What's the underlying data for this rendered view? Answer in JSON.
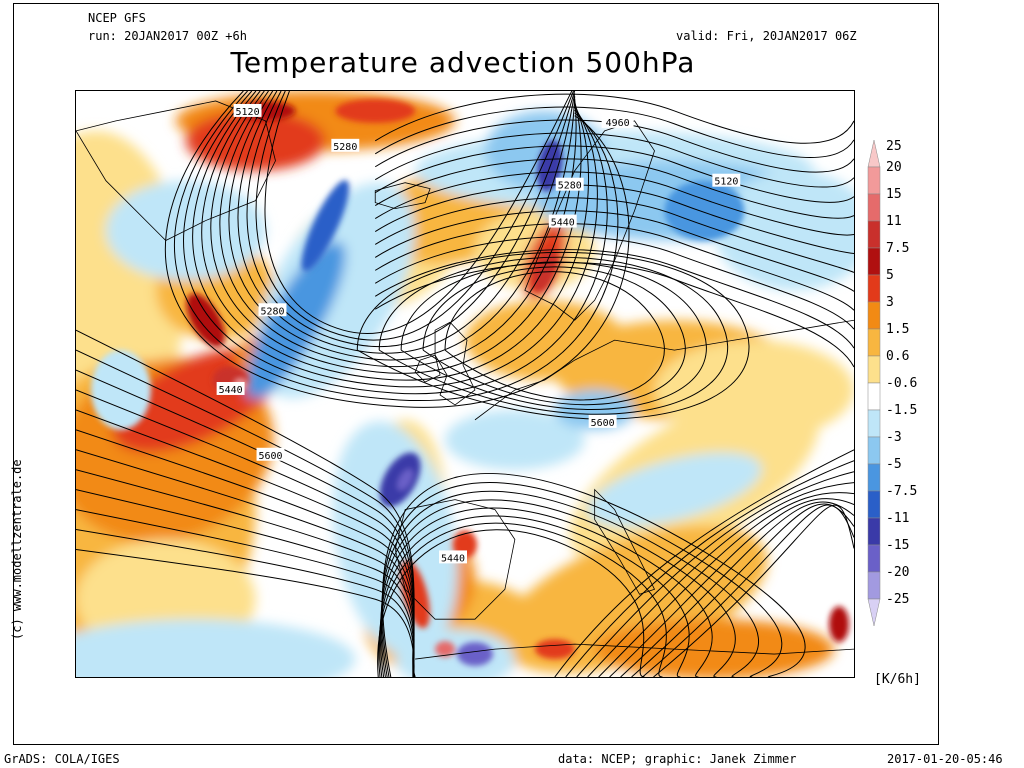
{
  "header": {
    "model": "NCEP GFS",
    "run": "run: 20JAN2017 00Z +6h",
    "valid": "valid: Fri, 20JAN2017 06Z",
    "title": "Temperature advection 500hPa"
  },
  "footer": {
    "grads": "GrADS: COLA/IGES",
    "data_credit": "data: NCEP; graphic: Janek Zimmer",
    "timestamp": "2017-01-20-05:46"
  },
  "side_credit": "(c) www.modellzentrale.de",
  "legend": {
    "unit": "[K/6h]",
    "levels": [
      {
        "label": "25",
        "color": "#f8c8c8"
      },
      {
        "label": "20",
        "color": "#f29a9a"
      },
      {
        "label": "15",
        "color": "#e56b6b"
      },
      {
        "label": "11",
        "color": "#c9302c"
      },
      {
        "label": "7.5",
        "color": "#b01010"
      },
      {
        "label": "5",
        "color": "#e23a1a"
      },
      {
        "label": "3",
        "color": "#f28a14"
      },
      {
        "label": "1.5",
        "color": "#f8b640"
      },
      {
        "label": "0.6",
        "color": "#fde08c"
      },
      {
        "label": "-0.6",
        "color": "#ffffff"
      },
      {
        "label": "-1.5",
        "color": "#bfe6f8"
      },
      {
        "label": "-3",
        "color": "#8cc8f0"
      },
      {
        "label": "-5",
        "color": "#4a96e0"
      },
      {
        "label": "-7.5",
        "color": "#2a5fc8"
      },
      {
        "label": "-11",
        "color": "#3a3aa8"
      },
      {
        "label": "-15",
        "color": "#6a60c8"
      },
      {
        "label": "-20",
        "color": "#a29ae0"
      },
      {
        "label": "-25",
        "color": "#d8d0f4"
      }
    ]
  },
  "contour_labels": [
    "5120",
    "5280",
    "4960",
    "5280",
    "5120",
    "5440",
    "5280",
    "5440",
    "5600",
    "5600",
    "5440"
  ]
}
